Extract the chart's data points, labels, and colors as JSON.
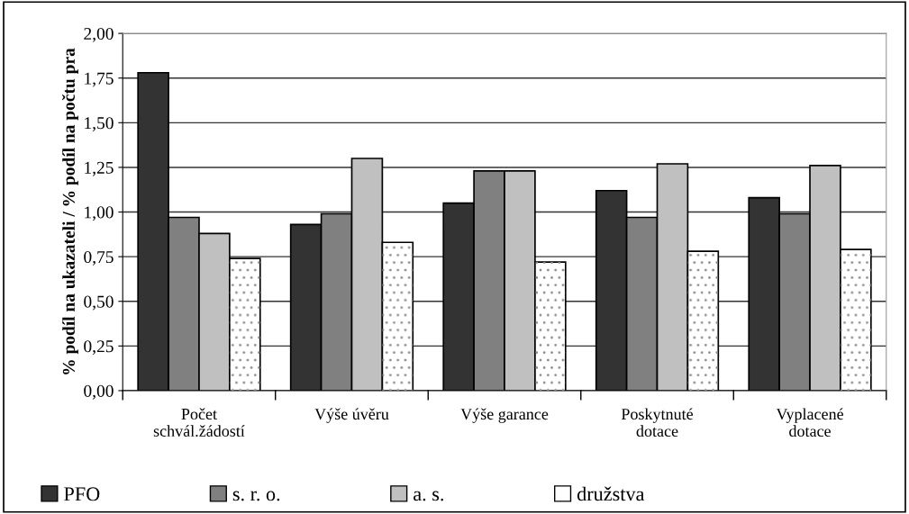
{
  "chart_data": {
    "type": "bar",
    "ylabel": "% podíl na ukazateli / % podíl na počtu pra",
    "categories": [
      "Počet\nschvál.žádostí",
      "Výše úvěru",
      "Výše garance",
      "Poskytnuté\ndotace",
      "Vyplacené\ndotace"
    ],
    "series": [
      {
        "name": "PFO",
        "color": "#333333",
        "values": [
          1.78,
          0.93,
          1.05,
          1.12,
          1.08
        ]
      },
      {
        "name": "s. r. o.",
        "color": "#808080",
        "values": [
          0.97,
          0.99,
          1.23,
          0.97,
          0.99
        ]
      },
      {
        "name": "a. s.",
        "color": "#c0c0c0",
        "values": [
          0.88,
          1.3,
          1.23,
          1.27,
          1.26
        ]
      },
      {
        "name": "družstva",
        "color": "#ffffff",
        "values": [
          0.74,
          0.83,
          0.72,
          0.78,
          0.79
        ]
      }
    ],
    "ylim": [
      0,
      2
    ],
    "yticks": [
      {
        "value": 0,
        "label": "0,00"
      },
      {
        "value": 0.25,
        "label": "0,25"
      },
      {
        "value": 0.5,
        "label": "0,50"
      },
      {
        "value": 0.75,
        "label": "0,75"
      },
      {
        "value": 1,
        "label": "1,00"
      },
      {
        "value": 1.25,
        "label": "1,25"
      },
      {
        "value": 1.5,
        "label": "1,50"
      },
      {
        "value": 1.75,
        "label": "1,75"
      },
      {
        "value": 2,
        "label": "2,00"
      }
    ],
    "grid": "y",
    "legend": "bottom"
  }
}
